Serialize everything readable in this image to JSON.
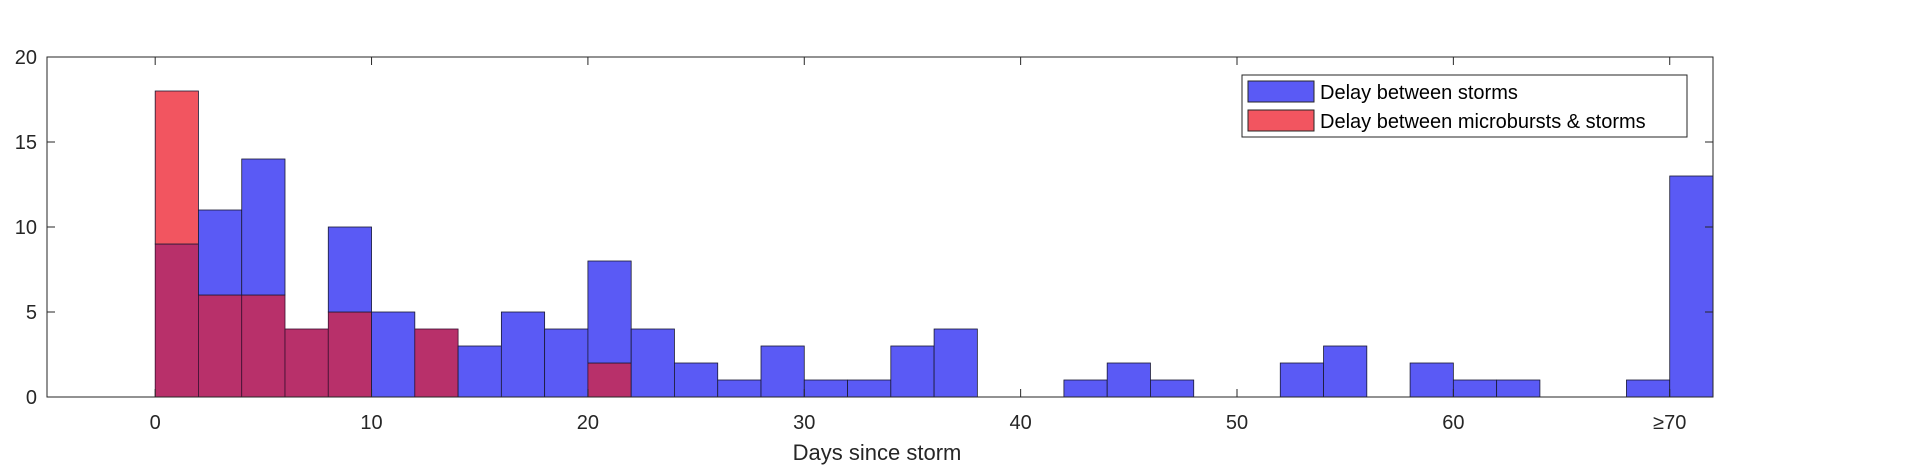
{
  "chart_data": {
    "type": "bar",
    "xlabel": "Days since storm",
    "ylabel": "",
    "xlim": [
      -5,
      72
    ],
    "ylim": [
      0,
      20
    ],
    "bin_width": 2,
    "x_ticks": [
      {
        "value": 0,
        "label": "0"
      },
      {
        "value": 10,
        "label": "10"
      },
      {
        "value": 20,
        "label": "20"
      },
      {
        "value": 30,
        "label": "30"
      },
      {
        "value": 40,
        "label": "40"
      },
      {
        "value": 50,
        "label": "50"
      },
      {
        "value": 60,
        "label": "60"
      },
      {
        "value": 70,
        "label": "≥70"
      }
    ],
    "y_ticks": [
      {
        "value": 0,
        "label": "0"
      },
      {
        "value": 5,
        "label": "5"
      },
      {
        "value": 10,
        "label": "10"
      },
      {
        "value": 15,
        "label": "15"
      },
      {
        "value": 20,
        "label": "20"
      }
    ],
    "bin_starts": [
      0,
      2,
      4,
      6,
      8,
      10,
      12,
      14,
      16,
      18,
      20,
      22,
      24,
      26,
      28,
      30,
      32,
      34,
      36,
      38,
      40,
      42,
      44,
      46,
      48,
      50,
      52,
      54,
      56,
      58,
      60,
      62,
      64,
      66,
      68,
      70
    ],
    "series": [
      {
        "name": "Delay between storms",
        "color": "#5a5af5",
        "values": [
          9,
          11,
          14,
          4,
          10,
          5,
          4,
          3,
          5,
          4,
          8,
          4,
          2,
          1,
          3,
          1,
          1,
          3,
          4,
          0,
          0,
          1,
          2,
          1,
          0,
          0,
          2,
          3,
          0,
          2,
          1,
          1,
          0,
          0,
          1,
          13
        ]
      },
      {
        "name": "Delay between microbursts & storms",
        "color": "#f25560",
        "values": [
          18,
          6,
          6,
          4,
          5,
          0,
          4,
          0,
          0,
          0,
          2,
          0,
          0,
          0,
          0,
          0,
          0,
          0,
          0,
          0,
          0,
          0,
          0,
          0,
          0,
          0,
          0,
          0,
          0,
          0,
          0,
          0,
          0,
          0,
          0,
          0
        ]
      }
    ],
    "overlap_color": "#b8306a",
    "legend_position": "top-right",
    "grid": false
  }
}
